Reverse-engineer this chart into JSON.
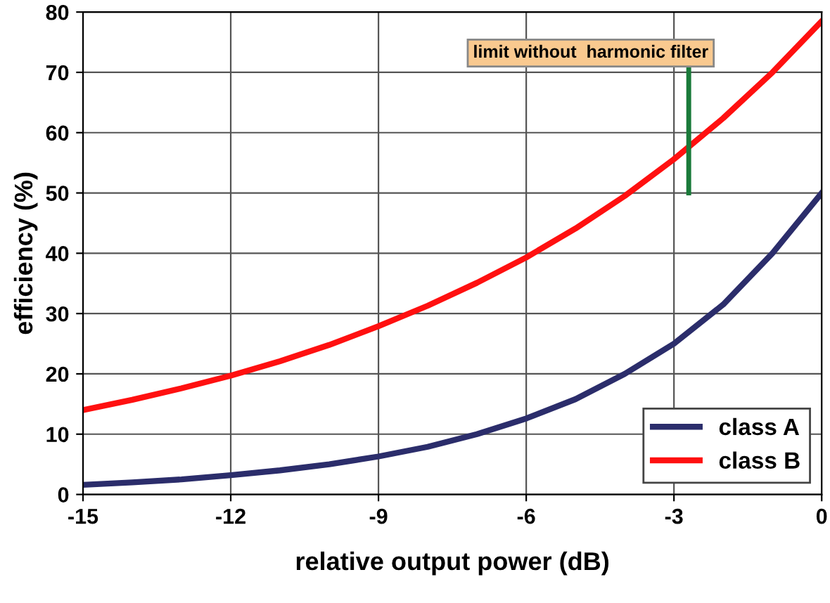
{
  "chart_data": {
    "type": "line",
    "xlabel": "relative output power (dB)",
    "ylabel": "efficiency (%)",
    "x": [
      -15,
      -14,
      -13,
      -12,
      -11,
      -10,
      -9,
      -8,
      -7,
      -6,
      -5,
      -4,
      -3,
      -2,
      -1,
      0
    ],
    "series": [
      {
        "name": "class A",
        "color": "#2b2d6b",
        "values": [
          1.6,
          2.0,
          2.5,
          3.2,
          4.0,
          5.0,
          6.3,
          7.9,
          10,
          12.6,
          15.8,
          20,
          25,
          31.5,
          40,
          50
        ]
      },
      {
        "name": "class B",
        "color": "#ff1010",
        "values": [
          14,
          15.7,
          17.6,
          19.7,
          22.1,
          24.8,
          27.9,
          31.3,
          35.1,
          39.3,
          44.1,
          49.5,
          55.6,
          62.4,
          70,
          78.5
        ]
      }
    ],
    "xlim": [
      -15,
      0
    ],
    "xticks": [
      -15,
      -12,
      -9,
      -6,
      -3,
      0
    ],
    "ylim": [
      0,
      80
    ],
    "yticks": [
      0,
      10,
      20,
      30,
      40,
      50,
      60,
      70,
      80
    ],
    "ref_lines": [
      {
        "axis": "x",
        "value": -2.7,
        "label": "limit without  harmonic filter",
        "color": "#1a7a3a"
      }
    ],
    "grid": true,
    "legend": "bottom right",
    "marker": "none",
    "line_style": "solid"
  }
}
